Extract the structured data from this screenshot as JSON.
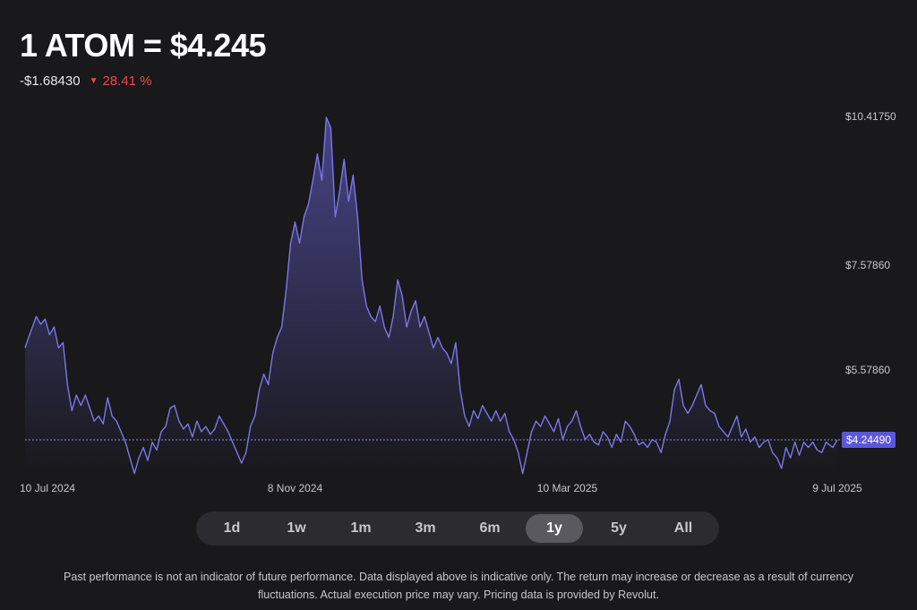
{
  "header": {
    "title": "1 ATOM = $4.245",
    "change_abs": "-$1.68430",
    "change_pct": "28.41 %",
    "change_direction_icon": "triangle-down-icon",
    "negative_color": "#f04848"
  },
  "timeframes": {
    "items": [
      "1d",
      "1w",
      "1m",
      "3m",
      "6m",
      "1y",
      "5y",
      "All"
    ],
    "selected": "1y"
  },
  "disclaimer": {
    "line1": "Past performance is not an indicator of future performance. Data displayed above is indicative only. The return may increase or decrease as a result of currency",
    "line2": "fluctuations. Actual execution price may vary. Pricing data is provided by Revolut."
  },
  "chart_data": {
    "type": "area",
    "title": "",
    "xlabel": "",
    "ylabel": "",
    "x_tick_labels": [
      {
        "label": "10 Jul 2024",
        "day": 0
      },
      {
        "label": "8 Nov 2024",
        "day": 121
      },
      {
        "label": "10 Mar 2025",
        "day": 243
      },
      {
        "label": "9 Jul 2025",
        "day": 364
      }
    ],
    "y_tick_labels": [
      "$10.41750",
      "$7.57860",
      "$5.57860"
    ],
    "y_ticks": [
      10.4175,
      7.5786,
      5.5786
    ],
    "current_price_label": "$4.24490",
    "current_price": 4.2449,
    "line_color": "#7b78e6",
    "grid": false,
    "series": [
      {
        "values": [
          [
            0,
            6.0
          ],
          [
            2,
            6.25
          ],
          [
            5,
            6.6
          ],
          [
            7,
            6.45
          ],
          [
            9,
            6.55
          ],
          [
            11,
            6.25
          ],
          [
            13,
            6.4
          ],
          [
            15,
            6.0
          ],
          [
            17,
            6.1
          ],
          [
            19,
            5.3
          ],
          [
            21,
            4.8
          ],
          [
            23,
            5.1
          ],
          [
            25,
            4.9
          ],
          [
            27,
            5.1
          ],
          [
            29,
            4.85
          ],
          [
            31,
            4.6
          ],
          [
            33,
            4.7
          ],
          [
            35,
            4.55
          ],
          [
            37,
            5.05
          ],
          [
            39,
            4.7
          ],
          [
            41,
            4.6
          ],
          [
            43,
            4.4
          ],
          [
            45,
            4.2
          ],
          [
            47,
            3.9
          ],
          [
            49,
            3.6
          ],
          [
            51,
            3.9
          ],
          [
            53,
            4.1
          ],
          [
            55,
            3.85
          ],
          [
            57,
            4.2
          ],
          [
            59,
            4.05
          ],
          [
            61,
            4.4
          ],
          [
            63,
            4.5
          ],
          [
            65,
            4.85
          ],
          [
            67,
            4.9
          ],
          [
            69,
            4.6
          ],
          [
            71,
            4.45
          ],
          [
            73,
            4.55
          ],
          [
            75,
            4.3
          ],
          [
            77,
            4.6
          ],
          [
            79,
            4.4
          ],
          [
            81,
            4.5
          ],
          [
            83,
            4.35
          ],
          [
            85,
            4.45
          ],
          [
            87,
            4.7
          ],
          [
            89,
            4.55
          ],
          [
            91,
            4.4
          ],
          [
            93,
            4.2
          ],
          [
            95,
            4.0
          ],
          [
            97,
            3.8
          ],
          [
            99,
            4.0
          ],
          [
            101,
            4.5
          ],
          [
            103,
            4.7
          ],
          [
            105,
            5.2
          ],
          [
            107,
            5.5
          ],
          [
            109,
            5.3
          ],
          [
            111,
            5.9
          ],
          [
            113,
            6.2
          ],
          [
            115,
            6.4
          ],
          [
            117,
            7.1
          ],
          [
            119,
            8.0
          ],
          [
            121,
            8.4
          ],
          [
            123,
            8.0
          ],
          [
            125,
            8.5
          ],
          [
            127,
            8.75
          ],
          [
            129,
            9.2
          ],
          [
            131,
            9.7
          ],
          [
            133,
            9.2
          ],
          [
            135,
            10.4
          ],
          [
            137,
            10.2
          ],
          [
            139,
            8.5
          ],
          [
            141,
            9.0
          ],
          [
            143,
            9.6
          ],
          [
            145,
            8.8
          ],
          [
            147,
            9.3
          ],
          [
            149,
            8.5
          ],
          [
            151,
            7.3
          ],
          [
            153,
            6.8
          ],
          [
            155,
            6.6
          ],
          [
            157,
            6.5
          ],
          [
            159,
            6.8
          ],
          [
            161,
            6.4
          ],
          [
            163,
            6.2
          ],
          [
            165,
            6.6
          ],
          [
            167,
            7.3
          ],
          [
            169,
            7.0
          ],
          [
            171,
            6.4
          ],
          [
            173,
            6.7
          ],
          [
            175,
            6.9
          ],
          [
            177,
            6.4
          ],
          [
            179,
            6.6
          ],
          [
            181,
            6.3
          ],
          [
            183,
            6.0
          ],
          [
            185,
            6.2
          ],
          [
            187,
            6.0
          ],
          [
            189,
            5.9
          ],
          [
            191,
            5.7
          ],
          [
            193,
            6.1
          ],
          [
            195,
            5.2
          ],
          [
            197,
            4.7
          ],
          [
            199,
            4.5
          ],
          [
            201,
            4.8
          ],
          [
            203,
            4.65
          ],
          [
            205,
            4.9
          ],
          [
            207,
            4.75
          ],
          [
            209,
            4.6
          ],
          [
            211,
            4.8
          ],
          [
            213,
            4.6
          ],
          [
            215,
            4.75
          ],
          [
            217,
            4.4
          ],
          [
            219,
            4.25
          ],
          [
            221,
            4.0
          ],
          [
            223,
            3.6
          ],
          [
            225,
            4.0
          ],
          [
            227,
            4.4
          ],
          [
            229,
            4.6
          ],
          [
            231,
            4.5
          ],
          [
            233,
            4.7
          ],
          [
            235,
            4.55
          ],
          [
            237,
            4.4
          ],
          [
            239,
            4.65
          ],
          [
            241,
            4.25
          ],
          [
            243,
            4.5
          ],
          [
            245,
            4.6
          ],
          [
            247,
            4.8
          ],
          [
            249,
            4.5
          ],
          [
            251,
            4.25
          ],
          [
            253,
            4.35
          ],
          [
            255,
            4.2
          ],
          [
            257,
            4.15
          ],
          [
            259,
            4.4
          ],
          [
            261,
            4.3
          ],
          [
            263,
            4.1
          ],
          [
            265,
            4.35
          ],
          [
            267,
            4.2
          ],
          [
            269,
            4.6
          ],
          [
            271,
            4.5
          ],
          [
            273,
            4.35
          ],
          [
            275,
            4.15
          ],
          [
            277,
            4.2
          ],
          [
            279,
            4.1
          ],
          [
            281,
            4.25
          ],
          [
            283,
            4.2
          ],
          [
            285,
            4.0
          ],
          [
            287,
            4.35
          ],
          [
            289,
            4.6
          ],
          [
            291,
            5.2
          ],
          [
            293,
            5.4
          ],
          [
            295,
            4.9
          ],
          [
            297,
            4.75
          ],
          [
            299,
            4.9
          ],
          [
            301,
            5.1
          ],
          [
            303,
            5.3
          ],
          [
            305,
            4.9
          ],
          [
            307,
            4.8
          ],
          [
            309,
            4.75
          ],
          [
            311,
            4.5
          ],
          [
            313,
            4.4
          ],
          [
            315,
            4.3
          ],
          [
            317,
            4.5
          ],
          [
            319,
            4.7
          ],
          [
            321,
            4.3
          ],
          [
            323,
            4.45
          ],
          [
            325,
            4.2
          ],
          [
            327,
            4.3
          ],
          [
            329,
            4.1
          ],
          [
            331,
            4.2
          ],
          [
            333,
            4.25
          ],
          [
            335,
            4.0
          ],
          [
            337,
            3.9
          ],
          [
            339,
            3.7
          ],
          [
            341,
            4.1
          ],
          [
            343,
            3.9
          ],
          [
            345,
            4.2
          ],
          [
            347,
            3.95
          ],
          [
            349,
            4.2
          ],
          [
            351,
            4.1
          ],
          [
            353,
            4.2
          ],
          [
            355,
            4.05
          ],
          [
            357,
            4.0
          ],
          [
            359,
            4.2
          ],
          [
            362,
            4.1
          ],
          [
            364,
            4.2449
          ]
        ]
      }
    ]
  }
}
